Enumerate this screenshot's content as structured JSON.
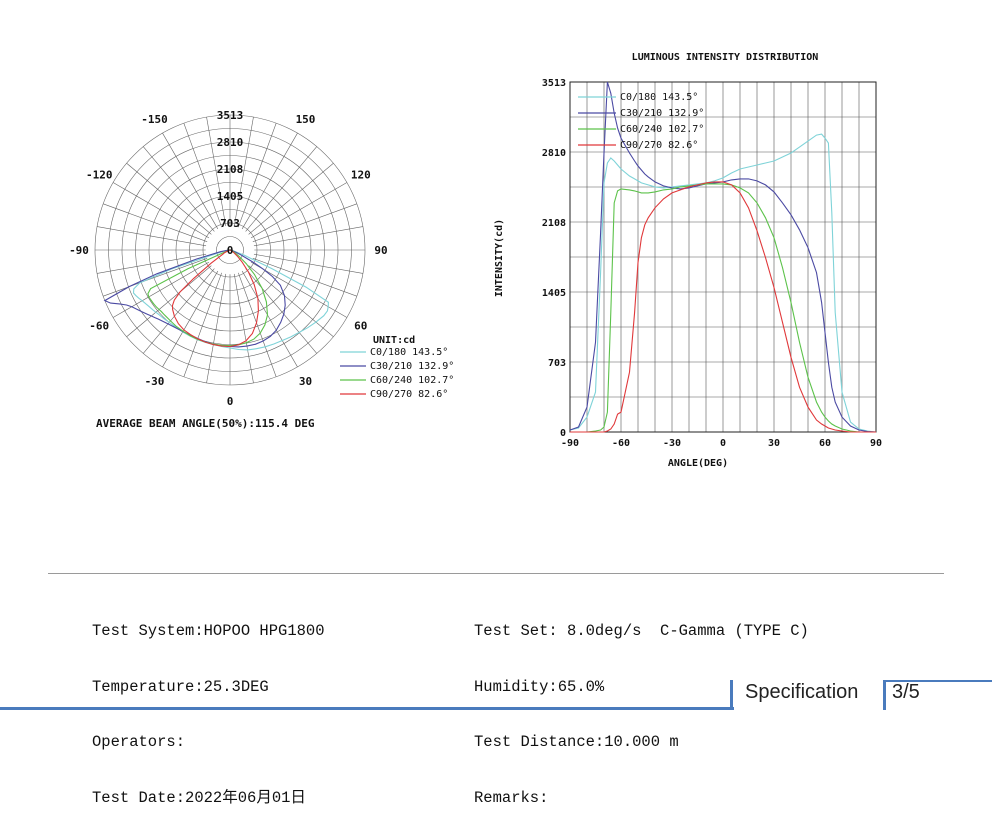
{
  "chart_data": [
    {
      "type": "polar",
      "unit_label": "UNIT:cd",
      "caption": "AVERAGE BEAM ANGLE(50%):115.4 DEG",
      "radial_ticks": [
        "703",
        "1405",
        "2108",
        "2810",
        "3513"
      ],
      "radial_values": [
        703,
        1405,
        2108,
        2810,
        3513
      ],
      "angle_labels": [
        {
          "angle": 0,
          "text": "0"
        },
        {
          "angle": 30,
          "text": "30"
        },
        {
          "angle": 60,
          "text": "60"
        },
        {
          "angle": 90,
          "text": "90"
        },
        {
          "angle": 120,
          "text": "120"
        },
        {
          "angle": 150,
          "text": "150"
        },
        {
          "angle": -30,
          "text": "-30"
        },
        {
          "angle": -60,
          "text": "-60"
        },
        {
          "angle": -90,
          "text": "-90"
        },
        {
          "angle": -120,
          "text": "-120"
        },
        {
          "angle": -150,
          "text": "-150"
        }
      ],
      "rmax": 3513,
      "legend_placement": "bottom-right",
      "series": [
        {
          "name": "C0/180 143.5°",
          "color": "#7fd3d8"
        },
        {
          "name": "C30/210 132.9°",
          "color": "#4b4aa3"
        },
        {
          "name": "C60/240 102.7°",
          "color": "#5cc24a"
        },
        {
          "name": "C90/270 82.6°",
          "color": "#e0383a"
        }
      ]
    },
    {
      "type": "line",
      "title": "LUMINOUS INTENSITY DISTRIBUTION",
      "xlabel": "ANGLE(DEG)",
      "ylabel": "INTENSITY(cd)",
      "xlim": [
        -90,
        90
      ],
      "ylim": [
        0,
        3513
      ],
      "x_ticks": [
        -90,
        -60,
        -30,
        0,
        30,
        60,
        90
      ],
      "y_ticks": [
        0,
        703,
        1405,
        2108,
        2810,
        3513
      ],
      "grid": true,
      "legend_placement": "top-left",
      "x": [
        -90,
        -85,
        -80,
        -75,
        -72,
        -70,
        -68,
        -66,
        -64,
        -62,
        -60,
        -55,
        -52,
        -50,
        -48,
        -46,
        -44,
        -40,
        -35,
        -30,
        -25,
        -20,
        -15,
        -10,
        -5,
        0,
        5,
        10,
        15,
        20,
        25,
        30,
        35,
        40,
        45,
        50,
        55,
        58,
        60,
        62,
        64,
        66,
        70,
        75,
        80,
        85,
        90
      ],
      "series": [
        {
          "name": "C0/180 143.5°",
          "color": "#7fd3d8",
          "values": [
            20,
            40,
            150,
            400,
            1600,
            2500,
            2700,
            2750,
            2720,
            2680,
            2640,
            2570,
            2540,
            2520,
            2500,
            2490,
            2480,
            2460,
            2450,
            2460,
            2470,
            2480,
            2490,
            2500,
            2520,
            2550,
            2600,
            2640,
            2660,
            2680,
            2700,
            2720,
            2760,
            2800,
            2860,
            2920,
            2980,
            2990,
            2950,
            2900,
            2200,
            1200,
            400,
            100,
            30,
            10,
            0
          ]
        },
        {
          "name": "C30/210 132.9°",
          "color": "#4b4aa3",
          "values": [
            20,
            50,
            250,
            900,
            2000,
            2800,
            3513,
            3400,
            3200,
            3050,
            2950,
            2800,
            2720,
            2670,
            2630,
            2590,
            2560,
            2510,
            2470,
            2450,
            2440,
            2450,
            2470,
            2490,
            2500,
            2510,
            2530,
            2540,
            2540,
            2520,
            2480,
            2410,
            2300,
            2180,
            2030,
            1850,
            1600,
            1300,
            1000,
            700,
            450,
            300,
            150,
            60,
            20,
            5,
            0
          ]
        },
        {
          "name": "C60/240 102.7°",
          "color": "#5cc24a",
          "values": [
            0,
            0,
            0,
            10,
            20,
            50,
            200,
            1200,
            2300,
            2420,
            2440,
            2430,
            2420,
            2410,
            2400,
            2400,
            2400,
            2410,
            2430,
            2440,
            2460,
            2470,
            2480,
            2490,
            2490,
            2490,
            2480,
            2450,
            2400,
            2300,
            2150,
            1950,
            1650,
            1300,
            900,
            550,
            300,
            200,
            150,
            110,
            80,
            60,
            30,
            10,
            0,
            0,
            0
          ]
        },
        {
          "name": "C90/270 82.6°",
          "color": "#e0383a",
          "values": [
            0,
            0,
            0,
            0,
            0,
            0,
            10,
            30,
            80,
            180,
            200,
            600,
            1200,
            1700,
            1950,
            2080,
            2150,
            2250,
            2340,
            2400,
            2430,
            2460,
            2480,
            2500,
            2510,
            2510,
            2480,
            2400,
            2250,
            2020,
            1750,
            1450,
            1100,
            750,
            450,
            250,
            120,
            80,
            60,
            40,
            30,
            20,
            10,
            0,
            0,
            0,
            0
          ]
        }
      ]
    }
  ],
  "info": {
    "left": [
      "Test System:HOPOO HPG1800",
      "Temperature:25.3DEG",
      "Operators:",
      "Test Date:2022年06月01日"
    ],
    "right": [
      "Test Set: 8.0deg/s  C-Gamma (TYPE C)",
      "Humidity:65.0%",
      "Test Distance:10.000 m",
      "Remarks:"
    ]
  },
  "footer": {
    "title": "Specification",
    "page": "3/5",
    "accent_color": "#4a7bbd"
  }
}
